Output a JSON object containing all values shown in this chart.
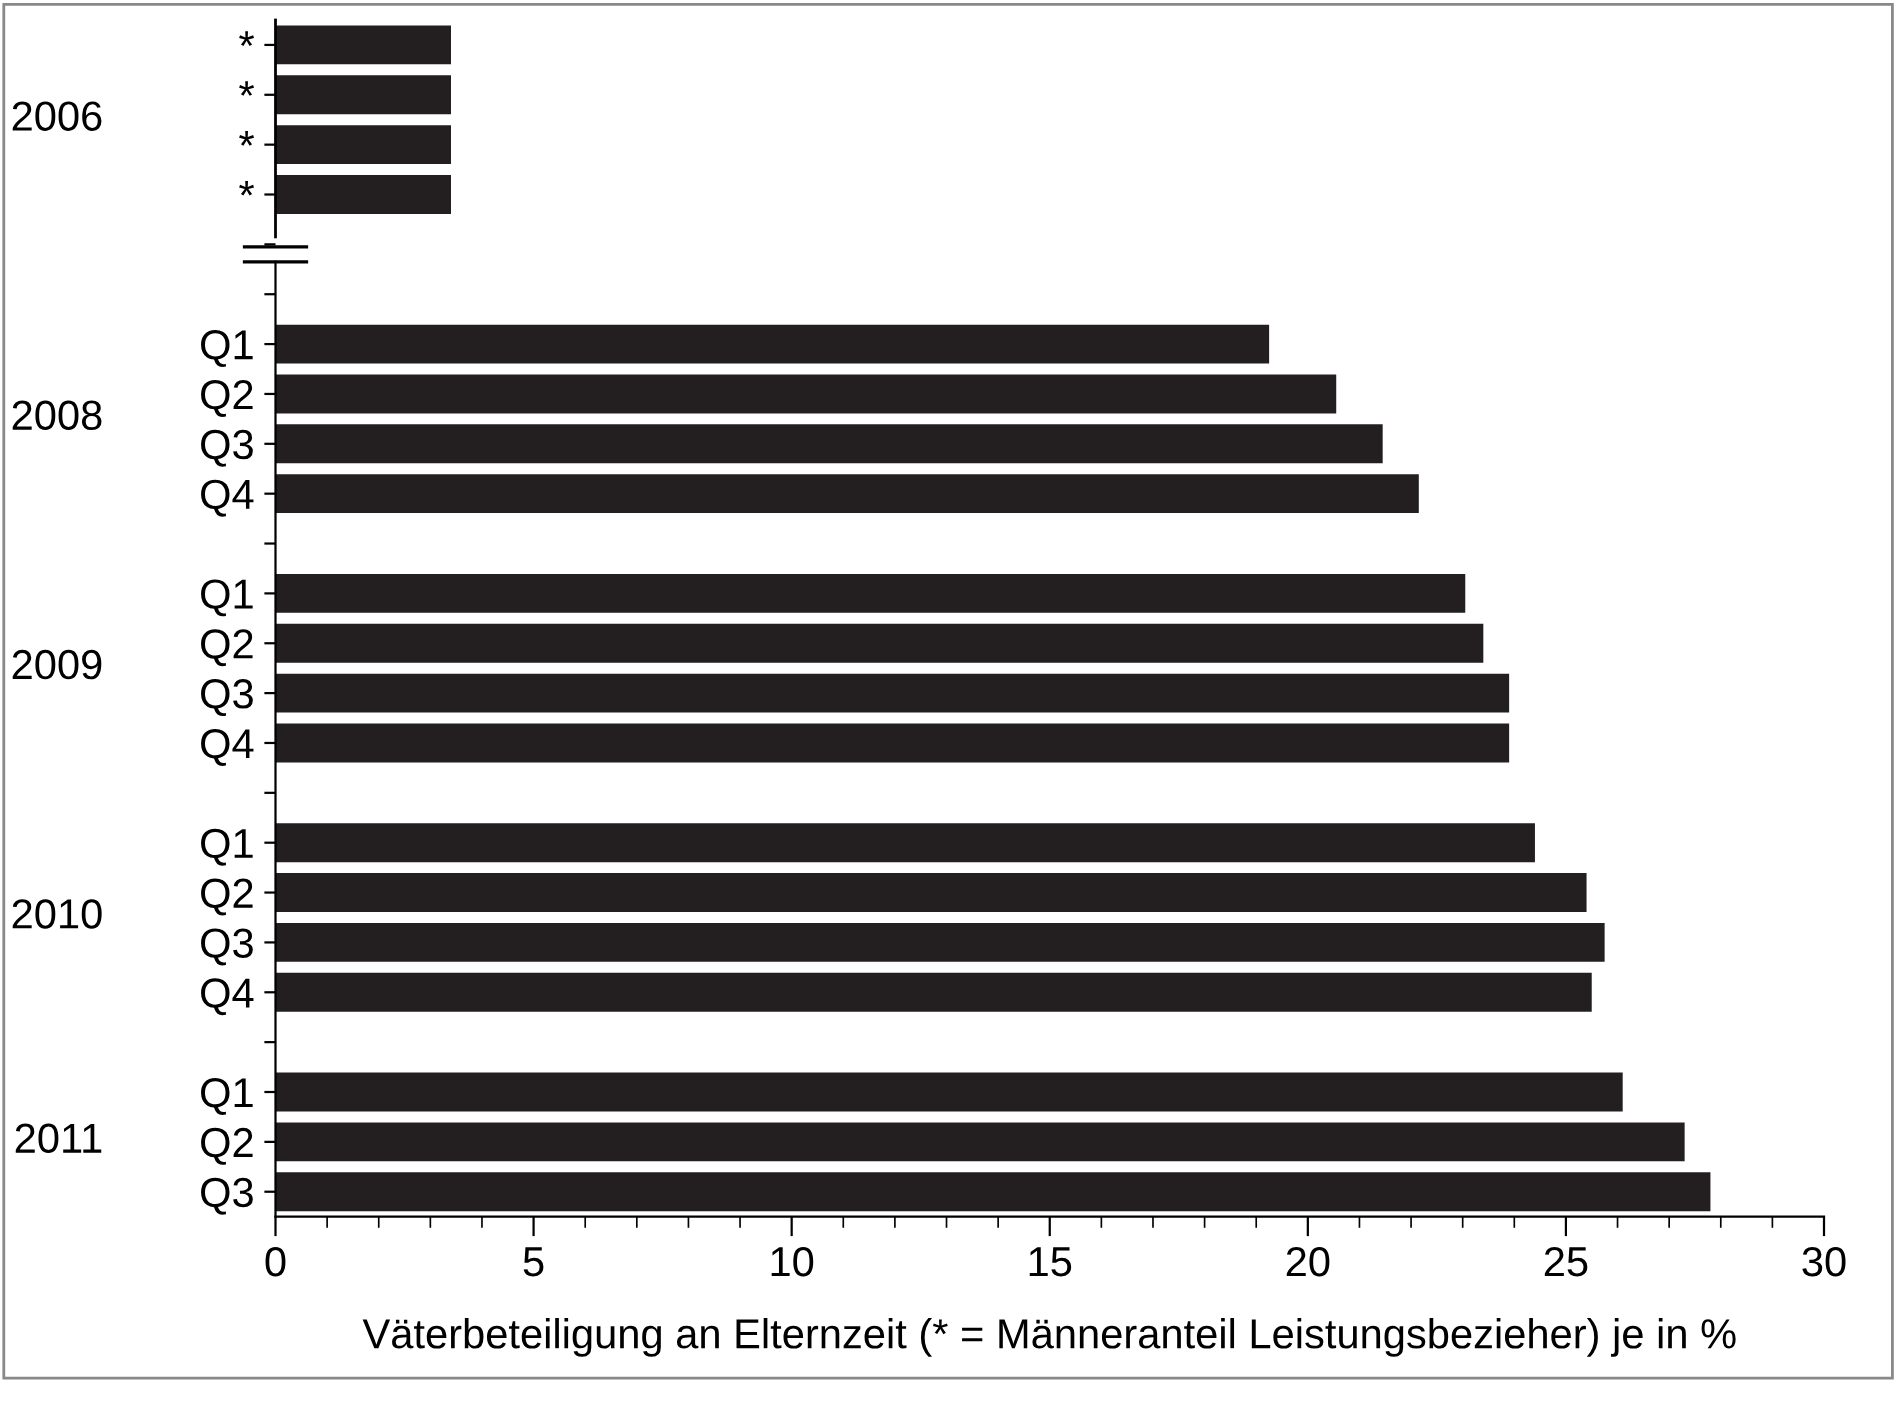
{
  "chart_data": {
    "type": "bar",
    "orientation": "horizontal",
    "xlabel": "Väterbeteiligung an Elternzeit (* = Männeranteil Leistungsbezieher) je in %",
    "categories": [
      "*",
      "*",
      "*",
      "*",
      null,
      null,
      "Q1",
      "Q2",
      "Q3",
      "Q4",
      null,
      "Q1",
      "Q2",
      "Q3",
      "Q4",
      null,
      "Q1",
      "Q2",
      "Q3",
      "Q4",
      null,
      "Q1",
      "Q2",
      "Q3"
    ],
    "values": [
      3.4,
      3.4,
      3.4,
      3.4,
      null,
      null,
      19.25,
      20.55,
      21.45,
      22.15,
      null,
      23.05,
      23.4,
      23.9,
      23.9,
      null,
      24.4,
      25.4,
      25.75,
      25.5,
      null,
      26.1,
      27.3,
      27.8
    ],
    "color": "#231f20",
    "annotations": [
      "2006",
      "2008",
      "2009",
      "2010",
      "2011"
    ],
    "xlim": [
      0,
      30
    ],
    "xticks": [
      0,
      5,
      10,
      15,
      20,
      25,
      30
    ],
    "grid": false,
    "legend": false
  }
}
